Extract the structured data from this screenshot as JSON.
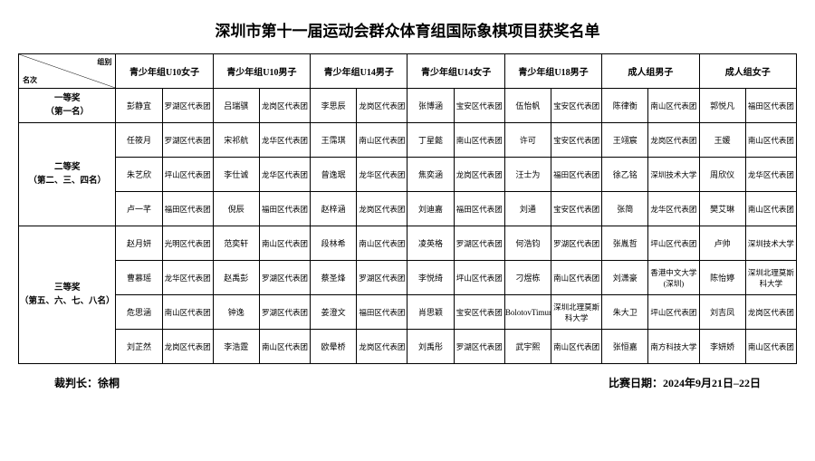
{
  "title": "深圳市第十一届运动会群众体育组国际象棋项目获奖名单",
  "diag": {
    "top": "组别",
    "bottom": "名次"
  },
  "groups": [
    "青少年组U10女子",
    "青少年组U10男子",
    "青少年组U14男子",
    "青少年组U14女子",
    "青少年组U18男子",
    "成人组男子",
    "成人组女子"
  ],
  "awards": [
    {
      "label": "一等奖\n（第一名）",
      "rows": 1
    },
    {
      "label": "二等奖\n（第二、三、四名）",
      "rows": 3
    },
    {
      "label": "三等奖\n（第五、六、七、八名）",
      "rows": 4
    }
  ],
  "data": [
    [
      [
        "彭静宜",
        "罗湖区代表团"
      ],
      [
        "吕瑞骐",
        "龙岗区代表团"
      ],
      [
        "李思辰",
        "龙岗区代表团"
      ],
      [
        "张博涵",
        "宝安区代表团"
      ],
      [
        "伍怡帆",
        "宝安区代表团"
      ],
      [
        "陈律衡",
        "南山区代表团"
      ],
      [
        "郭悦凡",
        "福田区代表团"
      ]
    ],
    [
      [
        "任筱月",
        "罗湖区代表团"
      ],
      [
        "宋祁航",
        "龙华区代表团"
      ],
      [
        "王霈琪",
        "南山区代表团"
      ],
      [
        "丁星懿",
        "南山区代表团"
      ],
      [
        "许可",
        "宝安区代表团"
      ],
      [
        "王翊宸",
        "龙岗区代表团"
      ],
      [
        "王媛",
        "南山区代表团"
      ]
    ],
    [
      [
        "朱艺欣",
        "坪山区代表团"
      ],
      [
        "李仕诚",
        "龙华区代表团"
      ],
      [
        "曾逸珉",
        "龙华区代表团"
      ],
      [
        "焦奕涵",
        "龙岗区代表团"
      ],
      [
        "汪士为",
        "福田区代表团"
      ],
      [
        "徐乙铭",
        "深圳技术大学"
      ],
      [
        "周欣仪",
        "龙华区代表团"
      ]
    ],
    [
      [
        "卢一芊",
        "福田区代表团"
      ],
      [
        "倪辰",
        "福田区代表团"
      ],
      [
        "赵梓涵",
        "龙岗区代表团"
      ],
      [
        "刘迪嘉",
        "福田区代表团"
      ],
      [
        "刘通",
        "宝安区代表团"
      ],
      [
        "张简",
        "龙华区代表团"
      ],
      [
        "樊艾琳",
        "南山区代表团"
      ]
    ],
    [
      [
        "赵月妍",
        "光明区代表团"
      ],
      [
        "范奕轩",
        "南山区代表团"
      ],
      [
        "段林希",
        "南山区代表团"
      ],
      [
        "凌英格",
        "罗湖区代表团"
      ],
      [
        "何浩钧",
        "罗湖区代表团"
      ],
      [
        "张胤哲",
        "坪山区代表团"
      ],
      [
        "卢帅",
        "深圳技术大学"
      ]
    ],
    [
      [
        "曹慕瑶",
        "龙华区代表团"
      ],
      [
        "赵禹彭",
        "罗湖区代表团"
      ],
      [
        "蔡圣烽",
        "罗湖区代表团"
      ],
      [
        "李悦绮",
        "坪山区代表团"
      ],
      [
        "刁煜栋",
        "南山区代表团"
      ],
      [
        "刘潇豪",
        "香港中文大学(深圳)"
      ],
      [
        "陈怡婷",
        "深圳北理莫斯科大学"
      ]
    ],
    [
      [
        "危思涵",
        "南山区代表团"
      ],
      [
        "钟逸",
        "罗湖区代表团"
      ],
      [
        "姜澄文",
        "福田区代表团"
      ],
      [
        "肖思颖",
        "宝安区代表团"
      ],
      [
        "BolotovTimur",
        "深圳北理莫斯科大学"
      ],
      [
        "朱大卫",
        "坪山区代表团"
      ],
      [
        "刘吉凤",
        "龙岗区代表团"
      ]
    ],
    [
      [
        "刘芷然",
        "龙岗区代表团"
      ],
      [
        "李浩霆",
        "南山区代表团"
      ],
      [
        "欧晕桥",
        "龙岗区代表团"
      ],
      [
        "刘禹彤",
        "罗湖区代表团"
      ],
      [
        "武宇熙",
        "南山区代表团"
      ],
      [
        "张恒嘉",
        "南方科技大学"
      ],
      [
        "李妍娇",
        "南山区代表团"
      ]
    ]
  ],
  "footer": {
    "referee_label": "裁判长：",
    "referee_name": "徐桐",
    "date_label": "比赛日期：",
    "date_value": "2024年9月21日–22日"
  }
}
